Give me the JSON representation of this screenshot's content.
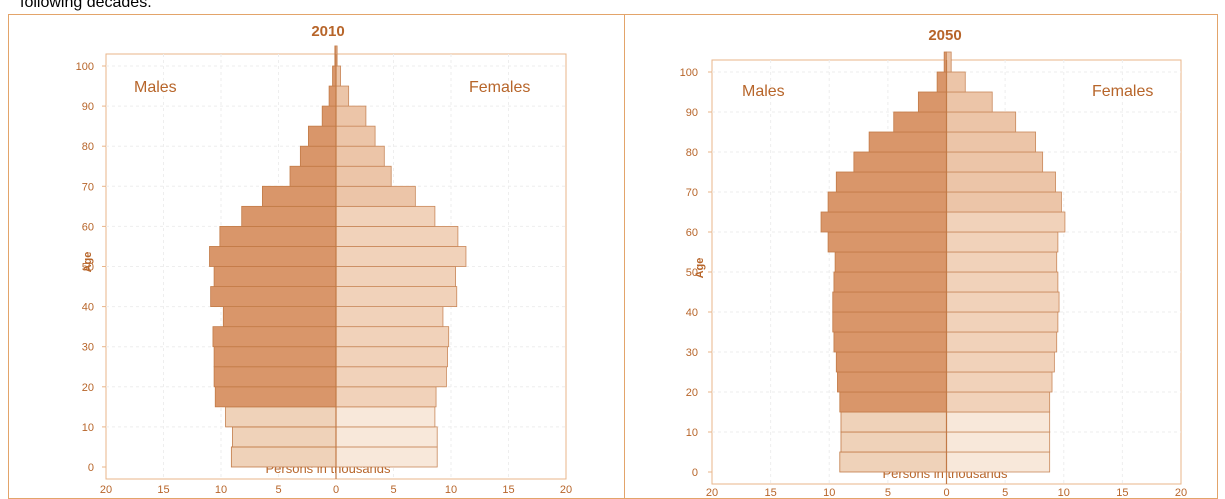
{
  "intro_text": "following decades.",
  "chart_data": [
    {
      "type": "bar",
      "orientation": "horizontal-population-pyramid",
      "title": "2010",
      "ylabel": "Age",
      "xlabel": "Persons in thousands",
      "left_label": "Males",
      "right_label": "Females",
      "xlim": [
        -20,
        20
      ],
      "x_ticks": [
        "20",
        "15",
        "10",
        "5",
        "0",
        "5",
        "10",
        "15",
        "20"
      ],
      "y_ticks": [
        "0",
        "10",
        "20",
        "30",
        "40",
        "50",
        "60",
        "70",
        "80",
        "90",
        "100"
      ],
      "ylim": [
        0,
        100
      ],
      "grid": true,
      "age_groups": [
        "0-4",
        "5-9",
        "10-14",
        "15-19",
        "20-24",
        "25-29",
        "30-34",
        "35-39",
        "40-44",
        "45-49",
        "50-54",
        "55-59",
        "60-64",
        "65-69",
        "70-74",
        "75-79",
        "80-84",
        "85-89",
        "90-94",
        "95-99",
        "100+"
      ],
      "series": [
        {
          "name": "Males",
          "values": [
            9.1,
            9.0,
            9.6,
            10.5,
            10.6,
            10.6,
            10.7,
            9.8,
            10.9,
            10.6,
            11.0,
            10.1,
            8.2,
            6.4,
            4.0,
            3.1,
            2.4,
            1.2,
            0.6,
            0.3,
            0.1
          ]
        },
        {
          "name": "Females",
          "values": [
            8.8,
            8.8,
            8.6,
            8.7,
            9.6,
            9.7,
            9.8,
            9.3,
            10.5,
            10.4,
            11.3,
            10.6,
            8.6,
            6.9,
            4.8,
            4.2,
            3.4,
            2.6,
            1.1,
            0.4,
            0.1
          ]
        }
      ]
    },
    {
      "type": "bar",
      "orientation": "horizontal-population-pyramid",
      "title": "2050",
      "ylabel": "Age",
      "xlabel": "Persons in thousands",
      "left_label": "Males",
      "right_label": "Females",
      "xlim": [
        -20,
        20
      ],
      "x_ticks": [
        "20",
        "15",
        "10",
        "5",
        "0",
        "5",
        "10",
        "15",
        "20"
      ],
      "y_ticks": [
        "0",
        "10",
        "20",
        "30",
        "40",
        "50",
        "60",
        "70",
        "80",
        "90",
        "100"
      ],
      "ylim": [
        0,
        100
      ],
      "grid": true,
      "age_groups": [
        "0-4",
        "5-9",
        "10-14",
        "15-19",
        "20-24",
        "25-29",
        "30-34",
        "35-39",
        "40-44",
        "45-49",
        "50-54",
        "55-59",
        "60-64",
        "65-69",
        "70-74",
        "75-79",
        "80-84",
        "85-89",
        "90-94",
        "95-99",
        "100+"
      ],
      "series": [
        {
          "name": "Males",
          "values": [
            9.1,
            9.0,
            9.0,
            9.1,
            9.3,
            9.4,
            9.6,
            9.7,
            9.7,
            9.6,
            9.5,
            10.1,
            10.7,
            10.1,
            9.4,
            7.9,
            6.6,
            4.5,
            2.4,
            0.8,
            0.2
          ]
        },
        {
          "name": "Females",
          "values": [
            8.8,
            8.8,
            8.8,
            8.8,
            9.0,
            9.2,
            9.4,
            9.5,
            9.6,
            9.5,
            9.4,
            9.5,
            10.1,
            9.8,
            9.3,
            8.2,
            7.6,
            5.9,
            3.9,
            1.6,
            0.4
          ]
        }
      ]
    }
  ]
}
